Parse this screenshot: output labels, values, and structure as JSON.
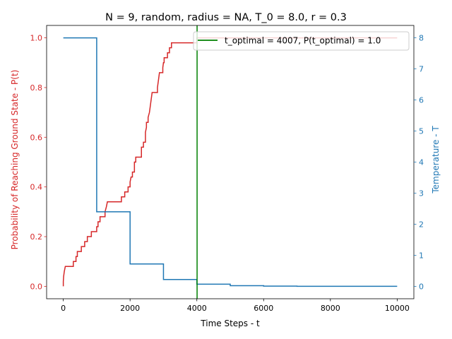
{
  "chart_data": {
    "type": "line",
    "title": "N = 9, random, radius = NA, T_0 = 8.0, r = 0.3",
    "xlabel": "Time Steps - t",
    "ylabel_left": "Probability of Reaching Ground State - P(t)",
    "ylabel_right": "Temperature - T",
    "xlim": [
      -500,
      10500
    ],
    "ylim_left": [
      -0.05,
      1.05
    ],
    "ylim_right": [
      -0.4,
      8.4
    ],
    "x_ticks": [
      0,
      2000,
      4000,
      6000,
      8000,
      10000
    ],
    "y_left_ticks": [
      0.0,
      0.2,
      0.4,
      0.6,
      0.8,
      1.0
    ],
    "y_right_ticks": [
      0,
      1,
      2,
      3,
      4,
      5,
      6,
      7,
      8
    ],
    "grid": false,
    "legend_position": "upper right",
    "colors": {
      "probability": "#d62728",
      "temperature": "#1f77b4",
      "optimal": "#008000"
    },
    "series": [
      {
        "axis": "left",
        "points": [
          [
            0,
            0
          ],
          [
            0,
            0.02
          ],
          [
            10,
            0.04
          ],
          [
            30,
            0.06
          ],
          [
            60,
            0.08
          ],
          [
            300,
            0.08
          ],
          [
            300,
            0.1
          ],
          [
            380,
            0.1
          ],
          [
            380,
            0.12
          ],
          [
            420,
            0.12
          ],
          [
            420,
            0.14
          ],
          [
            540,
            0.14
          ],
          [
            540,
            0.16
          ],
          [
            640,
            0.16
          ],
          [
            640,
            0.18
          ],
          [
            720,
            0.18
          ],
          [
            720,
            0.2
          ],
          [
            840,
            0.2
          ],
          [
            840,
            0.22
          ],
          [
            1000,
            0.22
          ],
          [
            1000,
            0.24
          ],
          [
            1040,
            0.24
          ],
          [
            1040,
            0.26
          ],
          [
            1100,
            0.26
          ],
          [
            1100,
            0.28
          ],
          [
            1250,
            0.28
          ],
          [
            1250,
            0.3
          ],
          [
            1290,
            0.32
          ],
          [
            1320,
            0.34
          ],
          [
            1740,
            0.34
          ],
          [
            1740,
            0.36
          ],
          [
            1840,
            0.36
          ],
          [
            1840,
            0.38
          ],
          [
            1940,
            0.38
          ],
          [
            1940,
            0.4
          ],
          [
            2000,
            0.4
          ],
          [
            2000,
            0.42
          ],
          [
            2030,
            0.44
          ],
          [
            2070,
            0.44
          ],
          [
            2070,
            0.46
          ],
          [
            2130,
            0.46
          ],
          [
            2130,
            0.5
          ],
          [
            2170,
            0.5
          ],
          [
            2170,
            0.52
          ],
          [
            2340,
            0.52
          ],
          [
            2340,
            0.56
          ],
          [
            2400,
            0.56
          ],
          [
            2400,
            0.58
          ],
          [
            2460,
            0.58
          ],
          [
            2460,
            0.62
          ],
          [
            2490,
            0.64
          ],
          [
            2490,
            0.66
          ],
          [
            2540,
            0.66
          ],
          [
            2540,
            0.68
          ],
          [
            2580,
            0.7
          ],
          [
            2600,
            0.72
          ],
          [
            2620,
            0.74
          ],
          [
            2640,
            0.76
          ],
          [
            2660,
            0.78
          ],
          [
            2820,
            0.78
          ],
          [
            2820,
            0.8
          ],
          [
            2840,
            0.82
          ],
          [
            2860,
            0.84
          ],
          [
            2880,
            0.86
          ],
          [
            2980,
            0.86
          ],
          [
            2980,
            0.88
          ],
          [
            3000,
            0.9
          ],
          [
            3020,
            0.9
          ],
          [
            3020,
            0.92
          ],
          [
            3120,
            0.92
          ],
          [
            3120,
            0.94
          ],
          [
            3180,
            0.94
          ],
          [
            3180,
            0.96
          ],
          [
            3240,
            0.96
          ],
          [
            3240,
            0.98
          ],
          [
            3500,
            0.98
          ],
          [
            4000,
            0.98
          ],
          [
            4000,
            1.0
          ],
          [
            10000,
            1.0
          ]
        ]
      },
      {
        "axis": "right",
        "points": [
          [
            0,
            8
          ],
          [
            1000,
            8
          ],
          [
            1000,
            2.4
          ],
          [
            2000,
            2.4
          ],
          [
            2000,
            0.72
          ],
          [
            3000,
            0.72
          ],
          [
            3000,
            0.22
          ],
          [
            4000,
            0.22
          ],
          [
            4000,
            0.07
          ],
          [
            5000,
            0.07
          ],
          [
            5000,
            0.02
          ],
          [
            6000,
            0.02
          ],
          [
            6000,
            0.006
          ],
          [
            7000,
            0.006
          ],
          [
            7000,
            0.002
          ],
          [
            10000,
            0.002
          ]
        ]
      }
    ],
    "t_optimal": 4007,
    "legend": [
      "t_optimal = 4007, P(t_optimal) = 1.0"
    ]
  }
}
